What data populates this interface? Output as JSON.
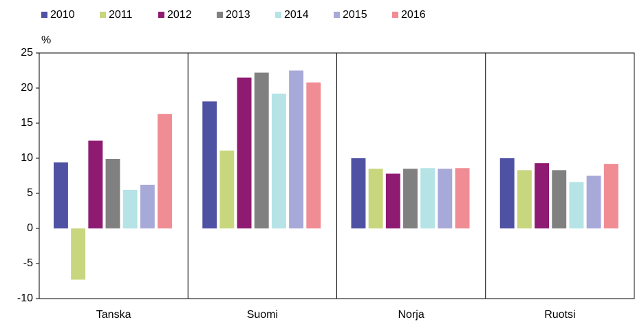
{
  "chart_data": {
    "type": "bar",
    "ylabel": "%",
    "categories": [
      "Tanska",
      "Suomi",
      "Norja",
      "Ruotsi"
    ],
    "series": [
      {
        "name": "2010",
        "color": "#4f52a3",
        "values": [
          9.4,
          18.1,
          10.0,
          10.0
        ]
      },
      {
        "name": "2011",
        "color": "#c8d67e",
        "values": [
          -7.3,
          11.1,
          8.5,
          8.3
        ]
      },
      {
        "name": "2012",
        "color": "#8e1a72",
        "values": [
          12.5,
          21.5,
          7.8,
          9.3
        ]
      },
      {
        "name": "2013",
        "color": "#808080",
        "values": [
          9.9,
          22.2,
          8.5,
          8.3
        ]
      },
      {
        "name": "2014",
        "color": "#b5e3e6",
        "values": [
          5.5,
          19.2,
          8.6,
          6.6
        ]
      },
      {
        "name": "2015",
        "color": "#a7a9d8",
        "values": [
          6.2,
          22.5,
          8.5,
          7.5
        ]
      },
      {
        "name": "2016",
        "color": "#f08c94",
        "values": [
          16.3,
          20.8,
          8.6,
          9.2
        ]
      }
    ],
    "ylim": [
      -10,
      25
    ],
    "yticks": [
      -10,
      -5,
      0,
      5,
      10,
      15,
      20,
      25
    ],
    "grid": false,
    "legend": "top"
  }
}
